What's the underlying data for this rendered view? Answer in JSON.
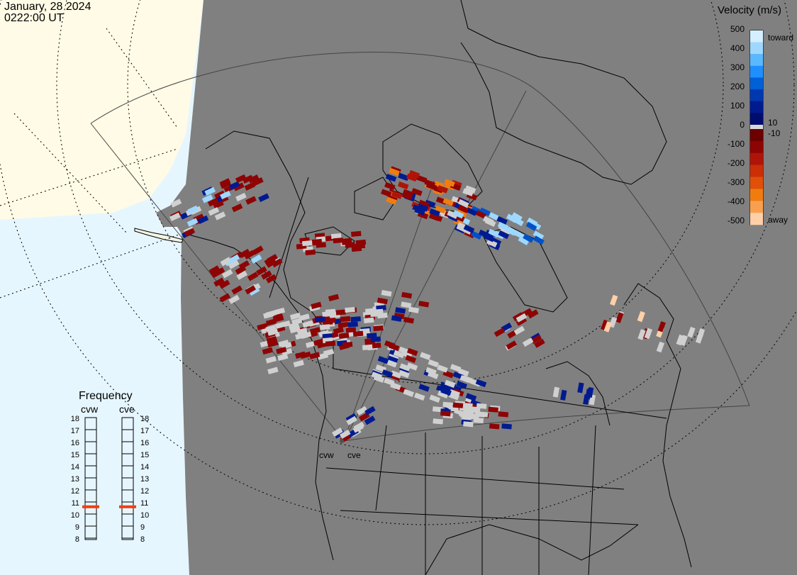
{
  "header": {
    "date": "January, 28 2024",
    "time": "0222:00 UT"
  },
  "colorbar": {
    "title": "Velocity (m/s)",
    "ticks": [
      "500",
      "400",
      "300",
      "200",
      "100",
      "0",
      "-100",
      "-200",
      "-300",
      "-400",
      "-500"
    ],
    "side_labels": [
      "toward",
      "10",
      "-10",
      "away"
    ],
    "colors_toward": [
      "#d4efff",
      "#9fd8ff",
      "#5ab8ff",
      "#1f8fff",
      "#0060d8",
      "#0038b0",
      "#001a90",
      "#000c6e"
    ],
    "colors_away": [
      "#6c0000",
      "#8e0404",
      "#b01408",
      "#cc2e06",
      "#e05008",
      "#f07c10",
      "#f8a050",
      "#ffd0a8"
    ]
  },
  "frequency": {
    "title": "Frequency",
    "radars": [
      "cvw",
      "cve"
    ],
    "levels": [
      "18",
      "17",
      "16",
      "15",
      "14",
      "13",
      "12",
      "11",
      "10",
      "9",
      "8"
    ],
    "cvw_mhz": 10.6,
    "cve_mhz": 10.6,
    "marker_color": "#f04010"
  },
  "map": {
    "station_labels": [
      "cvw",
      "cve"
    ],
    "land_color": "#808080",
    "ocean_color": "#e6f6ff",
    "daylight_color": "#fffbe6",
    "ground_scatter_color": "#d0d0d0"
  }
}
